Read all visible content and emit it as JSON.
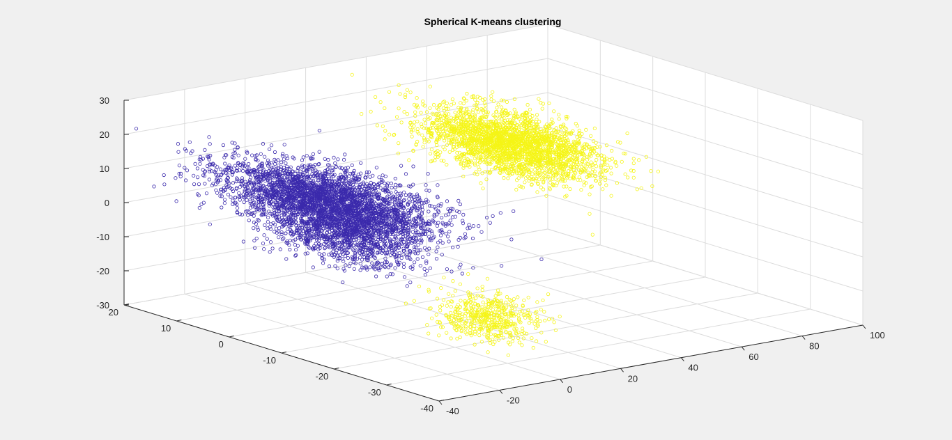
{
  "chart_data": {
    "type": "scatter",
    "title": "Spherical K-means clustering",
    "xlabel": "",
    "ylabel": "",
    "zlabel": "",
    "grid": true,
    "legend": "none",
    "axes": {
      "x": {
        "lim": [
          -40,
          100
        ],
        "ticks": [
          -40,
          -20,
          0,
          20,
          40,
          60,
          80,
          100
        ],
        "tick_labels": [
          "-40",
          "-20",
          "0",
          "20",
          "40",
          "60",
          "80",
          "100"
        ]
      },
      "y": {
        "lim": [
          -40,
          20
        ],
        "ticks": [
          -40,
          -30,
          -20,
          -10,
          0,
          10,
          20
        ],
        "tick_labels": [
          "-40",
          "-30",
          "-20",
          "-10",
          "0",
          "10",
          "20"
        ]
      },
      "z": {
        "lim": [
          -30,
          30
        ],
        "ticks": [
          -30,
          -20,
          -10,
          0,
          10,
          20,
          30
        ],
        "tick_labels": [
          "-30",
          "-20",
          "-10",
          "0",
          "10",
          "20",
          "30"
        ]
      }
    },
    "marker": "o",
    "series": [
      {
        "color": "#f5f516",
        "clusters": [
          {
            "center": [
              62,
              5,
              8
            ],
            "spread": [
              13,
              4,
              4.5
            ],
            "tilt_xz": -0.33,
            "points": 2600
          },
          {
            "center": [
              -10,
              -32,
              -14
            ],
            "spread": [
              6,
              3.5,
              3
            ],
            "tilt_xz": 0,
            "points": 500
          }
        ]
      },
      {
        "color": "#3b2aac",
        "clusters": [
          {
            "center": [
              -14,
              -4,
              8
            ],
            "spread": [
              8,
              9,
              4
            ],
            "tilt_xz": -0.1,
            "points": 3000
          },
          {
            "center": [
              -10,
              -4,
              -2
            ],
            "spread": [
              6,
              7,
              4
            ],
            "tilt_xz": 0,
            "points": 1200
          }
        ]
      }
    ]
  }
}
